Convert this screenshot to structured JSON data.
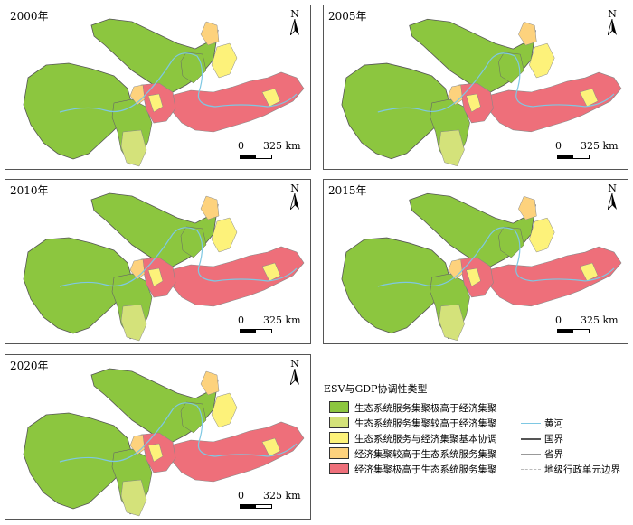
{
  "panels": [
    {
      "year": "2000年"
    },
    {
      "year": "2005年"
    },
    {
      "year": "2010年"
    },
    {
      "year": "2015年"
    },
    {
      "year": "2020年"
    }
  ],
  "north_label": "N",
  "scale": {
    "zero": "0",
    "distance": "325 km"
  },
  "legend": {
    "title": "ESV与GDP协调性类型",
    "categories": [
      {
        "label": "生态系统服务集聚极高于经济集聚",
        "color": "#8cc63f"
      },
      {
        "label": "生态系统服务集聚较高于经济集聚",
        "color": "#d4e27a"
      },
      {
        "label": "生态系统服务与经济集聚基本协调",
        "color": "#fdf27a"
      },
      {
        "label": "经济集聚较高于生态系统服务集聚",
        "color": "#fdd27d"
      },
      {
        "label": "经济集聚极高于生态系统服务集聚",
        "color": "#ee6f7a"
      }
    ],
    "lines": [
      {
        "label": "黄河",
        "color": "#7ec8e3"
      },
      {
        "label": "国界",
        "color": "#555555"
      },
      {
        "label": "省界",
        "color": "#999999"
      },
      {
        "label": "地级行政单元边界",
        "color": "#bbbbbb"
      }
    ]
  }
}
